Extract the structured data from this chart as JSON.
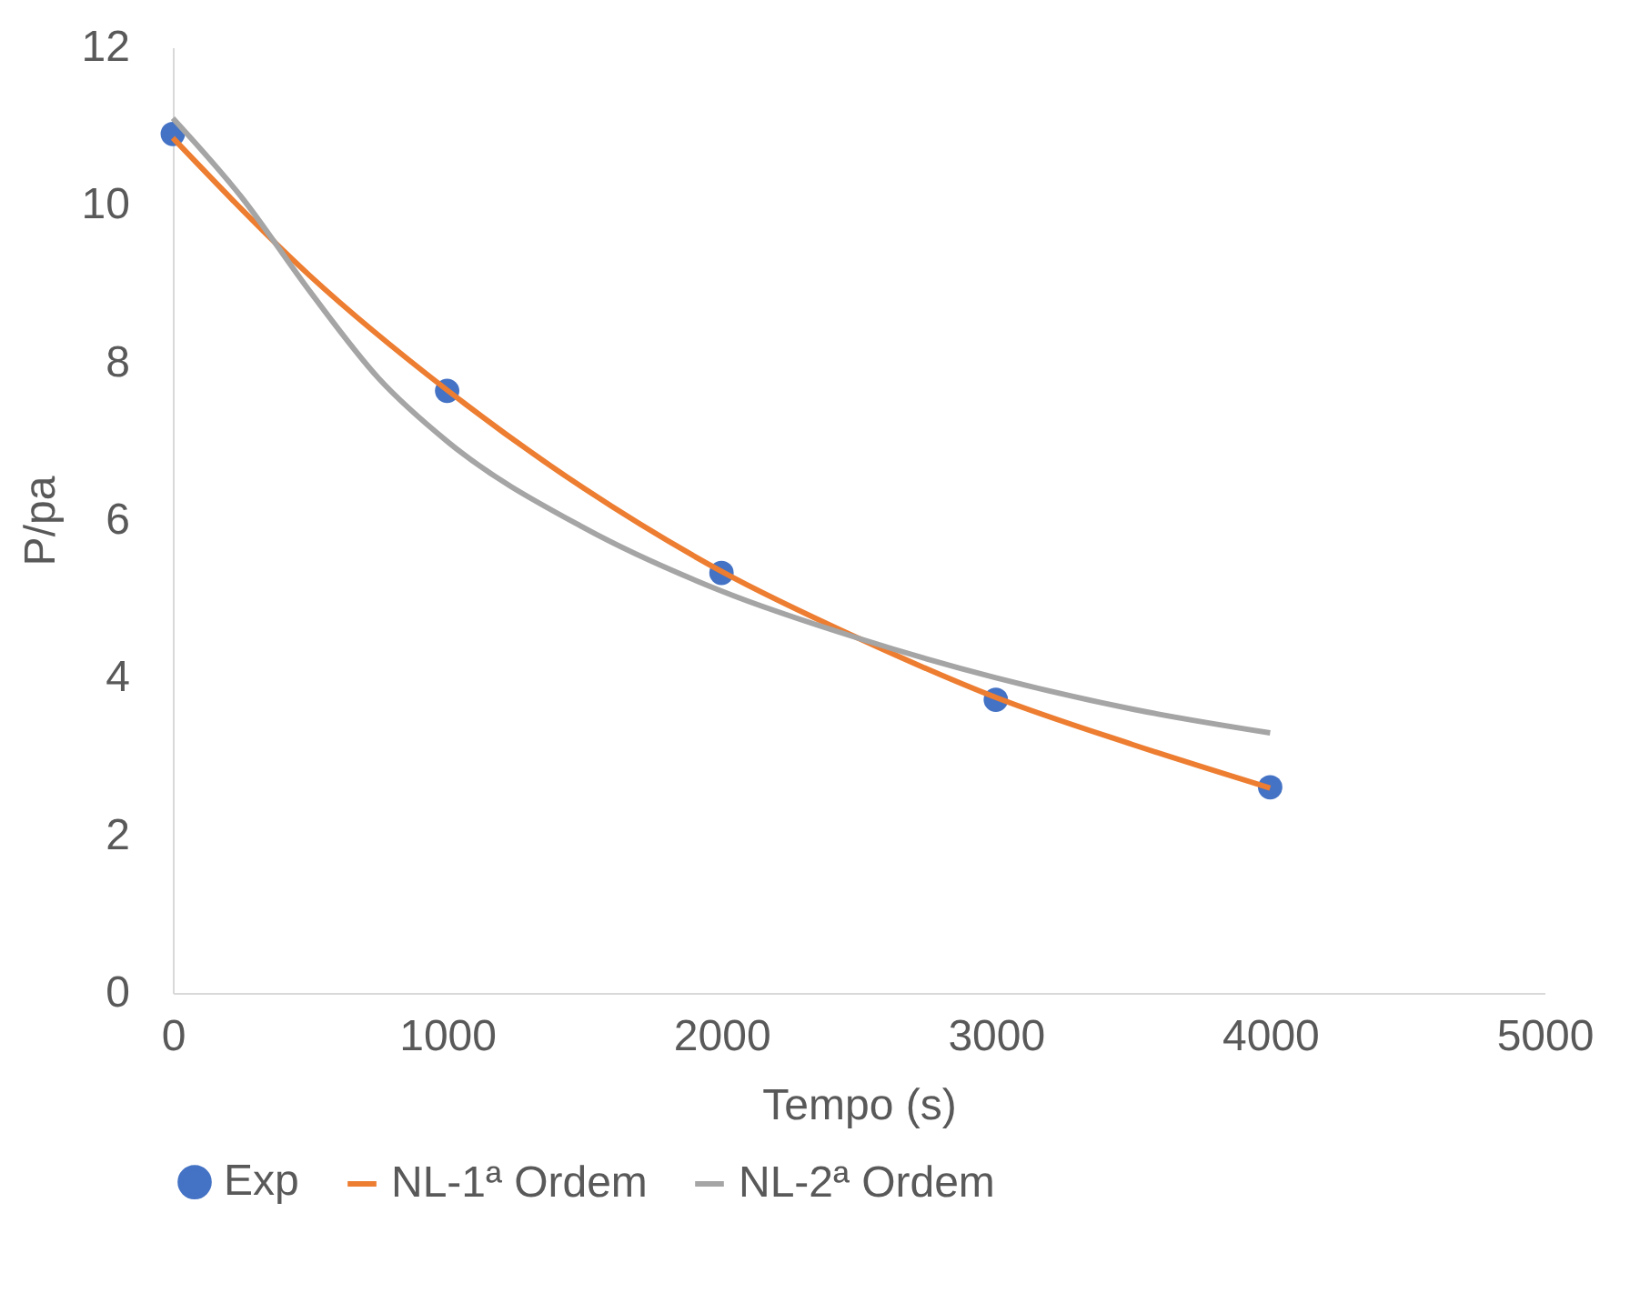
{
  "chart_data": {
    "type": "line",
    "xlabel": "Tempo (s)",
    "ylabel": "P/pa",
    "xlim": [
      0,
      5000
    ],
    "xticks": [
      0,
      1000,
      2000,
      3000,
      4000,
      5000
    ],
    "ylim": [
      0,
      12
    ],
    "yticks": [
      0,
      2,
      4,
      6,
      8,
      10,
      12
    ],
    "grid": false,
    "legend": "bottom",
    "series": [
      {
        "name": "Exp",
        "type": "scatter",
        "marker": "circle",
        "color": "#4472c4",
        "x": [
          0,
          1000,
          2000,
          3000,
          4000
        ],
        "values": [
          10.9,
          7.64,
          5.33,
          3.72,
          2.61
        ]
      },
      {
        "name": "NL-1ª Ordem",
        "type": "line",
        "color": "#ed7d31",
        "x": [
          0,
          500,
          1000,
          1500,
          2000,
          2500,
          3000,
          3500,
          4000
        ],
        "values": [
          10.85,
          9.1,
          7.65,
          6.4,
          5.35,
          4.5,
          3.75,
          3.15,
          2.6
        ]
      },
      {
        "name": "NL-2ª Ordem",
        "type": "line",
        "color": "#a5a5a5",
        "x": [
          0,
          250,
          500,
          750,
          1000,
          1500,
          2000,
          2500,
          3000,
          3500,
          4000
        ],
        "values": [
          11.1,
          10.1,
          8.9,
          7.8,
          7.0,
          5.9,
          5.1,
          4.5,
          4.0,
          3.6,
          3.3
        ]
      }
    ]
  }
}
